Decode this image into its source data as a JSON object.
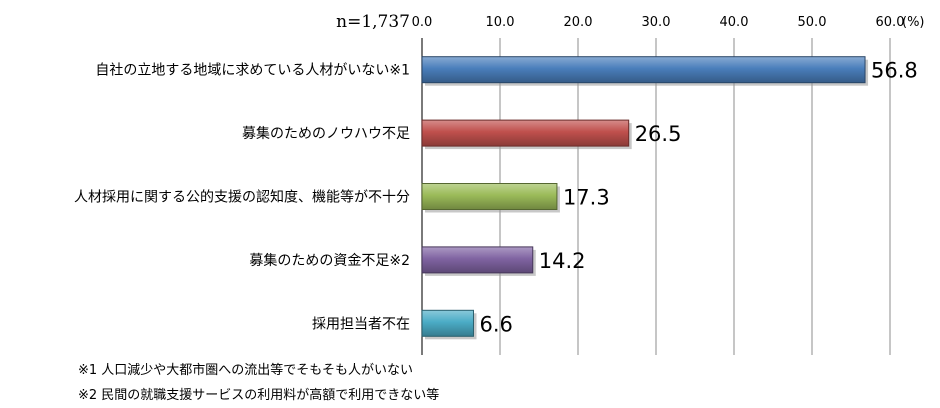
{
  "chart_data": {
    "type": "bar",
    "orientation": "horizontal",
    "sample_size": "n=1,737",
    "unit": "(%)",
    "xlim": [
      0,
      60
    ],
    "xticks": [
      "0.0",
      "10.0",
      "20.0",
      "30.0",
      "40.0",
      "50.0",
      "60.0"
    ],
    "grid": true,
    "categories": [
      "自社の立地する地域に求めている人材がいない※1",
      "募集のためのノウハウ不足",
      "人材採用に関する公的支援の認知度、機能等が不十分",
      "募集のための資金不足※2",
      "採用担当者不在"
    ],
    "values": [
      56.8,
      26.5,
      17.3,
      14.2,
      6.6
    ],
    "value_labels": [
      "56.8",
      "26.5",
      "17.3",
      "14.2",
      "6.6"
    ],
    "colors": [
      "#4a7ebb",
      "#c0504d",
      "#9bbb59",
      "#8064a2",
      "#4bacc6"
    ],
    "notes": [
      "※1 人口減少や大都市圏への流出等でそもそも人がいない",
      "※2 民間の就職支援サービスの利用料が高額で利用できない等"
    ]
  }
}
